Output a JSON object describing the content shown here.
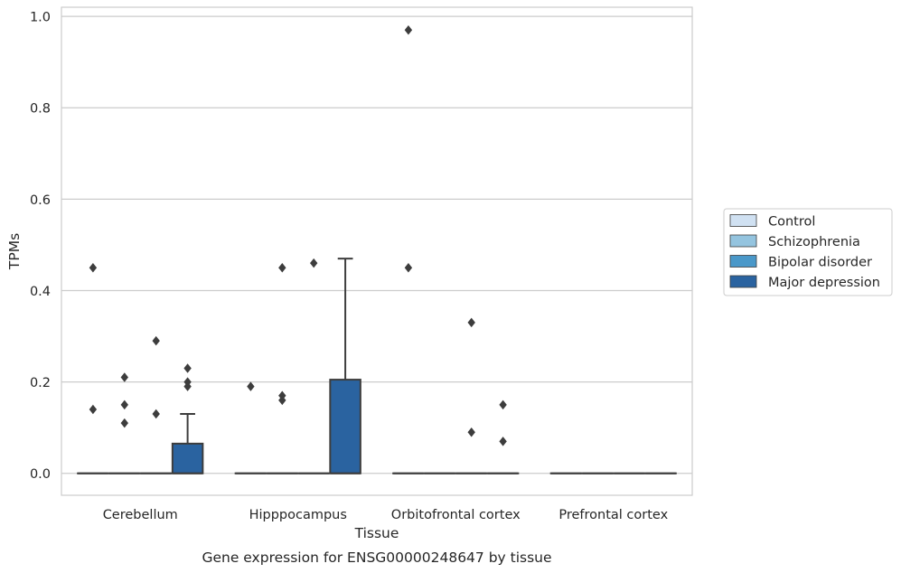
{
  "chart_data": {
    "type": "box",
    "title": "",
    "caption": "Gene expression for ENSG00000248647 by tissue",
    "xlabel": "Tissue",
    "ylabel": "TPMs",
    "ylim": [
      -0.048,
      1.02
    ],
    "yticks": [
      0.0,
      0.2,
      0.4,
      0.6,
      0.8,
      1.0
    ],
    "ytick_labels": [
      "0.0",
      "0.2",
      "0.4",
      "0.6",
      "0.8",
      "1.0"
    ],
    "grid": "horizontal",
    "legend_position": "right",
    "categories": [
      "Cerebellum",
      "Hipppocampus",
      "Orbitofrontal cortex",
      "Prefrontal cortex"
    ],
    "series": [
      {
        "name": "Control",
        "color": "#d0e1f2",
        "boxes": [
          {
            "q1": 0,
            "median": 0,
            "q3": 0,
            "whisker_low": 0,
            "whisker_high": 0,
            "outliers": [
              0.45,
              0.14
            ]
          },
          {
            "q1": 0,
            "median": 0,
            "q3": 0,
            "whisker_low": 0,
            "whisker_high": 0,
            "outliers": [
              0.19
            ]
          },
          {
            "q1": 0,
            "median": 0,
            "q3": 0,
            "whisker_low": 0,
            "whisker_high": 0,
            "outliers": [
              0.97,
              0.45
            ]
          },
          {
            "q1": 0,
            "median": 0,
            "q3": 0,
            "whisker_low": 0,
            "whisker_high": 0,
            "outliers": []
          }
        ]
      },
      {
        "name": "Schizophrenia",
        "color": "#94c4df",
        "boxes": [
          {
            "q1": 0,
            "median": 0,
            "q3": 0,
            "whisker_low": 0,
            "whisker_high": 0,
            "outliers": [
              0.21,
              0.15,
              0.11
            ]
          },
          {
            "q1": 0,
            "median": 0,
            "q3": 0,
            "whisker_low": 0,
            "whisker_high": 0,
            "outliers": [
              0.45,
              0.17,
              0.16
            ]
          },
          {
            "q1": 0,
            "median": 0,
            "q3": 0,
            "whisker_low": 0,
            "whisker_high": 0,
            "outliers": []
          },
          {
            "q1": 0,
            "median": 0,
            "q3": 0,
            "whisker_low": 0,
            "whisker_high": 0,
            "outliers": []
          }
        ]
      },
      {
        "name": "Bipolar disorder",
        "color": "#4a98c9",
        "boxes": [
          {
            "q1": 0,
            "median": 0,
            "q3": 0,
            "whisker_low": 0,
            "whisker_high": 0,
            "outliers": [
              0.29,
              0.13
            ]
          },
          {
            "q1": 0,
            "median": 0,
            "q3": 0,
            "whisker_low": 0,
            "whisker_high": 0,
            "outliers": [
              0.46
            ]
          },
          {
            "q1": 0,
            "median": 0,
            "q3": 0,
            "whisker_low": 0,
            "whisker_high": 0,
            "outliers": [
              0.33,
              0.09
            ]
          },
          {
            "q1": 0,
            "median": 0,
            "q3": 0,
            "whisker_low": 0,
            "whisker_high": 0,
            "outliers": []
          }
        ]
      },
      {
        "name": "Major depression",
        "color": "#2a63a0",
        "boxes": [
          {
            "q1": 0,
            "median": 0,
            "q3": 0.065,
            "whisker_low": 0,
            "whisker_high": 0.13,
            "outliers": [
              0.23,
              0.2,
              0.19
            ]
          },
          {
            "q1": 0,
            "median": 0,
            "q3": 0.205,
            "whisker_low": 0,
            "whisker_high": 0.47,
            "outliers": []
          },
          {
            "q1": 0,
            "median": 0,
            "q3": 0,
            "whisker_low": 0,
            "whisker_high": 0,
            "outliers": [
              0.15,
              0.07
            ]
          },
          {
            "q1": 0,
            "median": 0,
            "q3": 0,
            "whisker_low": 0,
            "whisker_high": 0,
            "outliers": []
          }
        ]
      }
    ]
  }
}
